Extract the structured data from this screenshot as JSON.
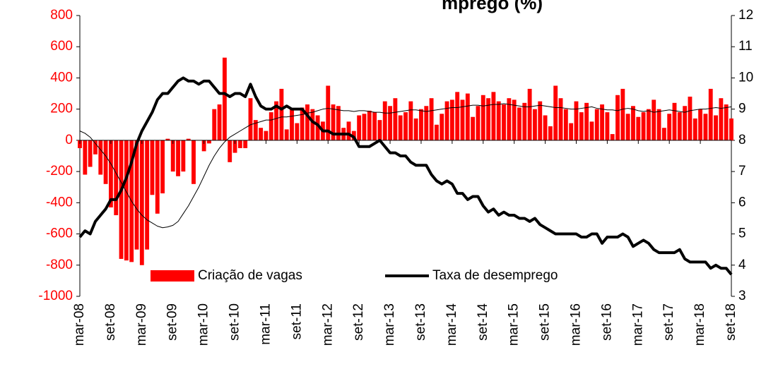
{
  "chart_data": {
    "type": "bar_line",
    "title": "mprego (%)",
    "categories": [
      "mar-08",
      null,
      null,
      null,
      null,
      null,
      "set-08",
      null,
      null,
      null,
      null,
      null,
      "mar-09",
      null,
      null,
      null,
      null,
      null,
      "set-09",
      null,
      null,
      null,
      null,
      null,
      "mar-10",
      null,
      null,
      null,
      null,
      null,
      "set-10",
      null,
      null,
      null,
      null,
      null,
      "mar-11",
      null,
      null,
      null,
      null,
      null,
      "set-11",
      null,
      null,
      null,
      null,
      null,
      "mar-12",
      null,
      null,
      null,
      null,
      null,
      "set-12",
      null,
      null,
      null,
      null,
      null,
      "mar-13",
      null,
      null,
      null,
      null,
      null,
      "set-13",
      null,
      null,
      null,
      null,
      null,
      "mar-14",
      null,
      null,
      null,
      null,
      null,
      "set-14",
      null,
      null,
      null,
      null,
      null,
      "mar-15",
      null,
      null,
      null,
      null,
      null,
      "set-15",
      null,
      null,
      null,
      null,
      null,
      "mar-16",
      null,
      null,
      null,
      null,
      null,
      "set-16",
      null,
      null,
      null,
      null,
      null,
      "mar-17",
      null,
      null,
      null,
      null,
      null,
      "set-17",
      null,
      null,
      null,
      null,
      null,
      "mar-18",
      null,
      null,
      null,
      null,
      null,
      "set-18"
    ],
    "series": [
      {
        "name": "Criação de vagas",
        "kind": "bar",
        "color": "#ff0000",
        "axis": "y",
        "values": [
          -50,
          -220,
          -170,
          -90,
          -220,
          -280,
          -430,
          -480,
          -760,
          -770,
          -780,
          -700,
          -800,
          -700,
          -350,
          -470,
          -340,
          10,
          -200,
          -230,
          -200,
          10,
          -280,
          0,
          -70,
          -20,
          200,
          230,
          530,
          -140,
          -80,
          -50,
          -50,
          270,
          130,
          80,
          60,
          180,
          250,
          330,
          70,
          200,
          110,
          210,
          230,
          200,
          160,
          120,
          350,
          230,
          220,
          80,
          120,
          60,
          160,
          170,
          190,
          180,
          130,
          250,
          220,
          270,
          160,
          180,
          250,
          140,
          200,
          220,
          270,
          100,
          170,
          250,
          260,
          310,
          260,
          300,
          150,
          220,
          290,
          270,
          310,
          250,
          230,
          270,
          260,
          210,
          240,
          330,
          200,
          250,
          160,
          90,
          350,
          270,
          200,
          110,
          250,
          180,
          240,
          120,
          200,
          230,
          180,
          40,
          290,
          330,
          170,
          220,
          150,
          180,
          200,
          260,
          200,
          80,
          170,
          240,
          180,
          220,
          280,
          140,
          200,
          170,
          330,
          160,
          270,
          230,
          140
        ]
      },
      {
        "kind": "line",
        "color": "#000000",
        "width": 1,
        "axis": "y",
        "values": [
          60,
          45,
          20,
          -20,
          -60,
          -100,
          -150,
          -210,
          -270,
          -330,
          -390,
          -440,
          -480,
          -510,
          -530,
          -550,
          -560,
          -555,
          -545,
          -520,
          -470,
          -420,
          -360,
          -300,
          -230,
          -160,
          -100,
          -50,
          -10,
          20,
          40,
          60,
          80,
          100,
          110,
          120,
          130,
          130,
          140,
          150,
          150,
          155,
          160,
          165,
          175,
          180,
          190,
          200,
          205,
          200,
          195,
          190,
          190,
          185,
          190,
          190,
          185,
          180,
          180,
          175,
          175,
          180,
          185,
          190,
          195,
          195,
          190,
          185,
          190,
          195,
          200,
          205,
          210,
          210,
          215,
          220,
          225,
          225,
          220,
          225,
          230,
          230,
          235,
          230,
          225,
          220,
          215,
          215,
          220,
          225,
          220,
          215,
          210,
          210,
          205,
          200,
          200,
          205,
          210,
          215,
          205,
          200,
          195,
          195,
          190,
          200,
          205,
          200,
          190,
          185,
          190,
          180,
          185,
          190,
          195,
          190,
          185,
          180,
          190,
          195,
          200,
          200,
          205,
          210,
          205,
          210,
          215
        ]
      },
      {
        "name": "Taxa de desemprego",
        "kind": "line",
        "color": "#000000",
        "width": 4,
        "axis": "y2",
        "values": [
          4.9,
          5.1,
          5.0,
          5.4,
          5.6,
          5.8,
          6.1,
          6.1,
          6.4,
          6.8,
          7.3,
          7.9,
          8.3,
          8.6,
          8.9,
          9.3,
          9.5,
          9.5,
          9.7,
          9.9,
          10.0,
          9.9,
          9.9,
          9.8,
          9.9,
          9.9,
          9.7,
          9.5,
          9.5,
          9.4,
          9.5,
          9.5,
          9.4,
          9.8,
          9.4,
          9.1,
          9.0,
          9.0,
          9.1,
          9.0,
          9.1,
          9.0,
          9.0,
          9.0,
          8.8,
          8.6,
          8.5,
          8.3,
          8.3,
          8.2,
          8.2,
          8.2,
          8.2,
          8.1,
          7.8,
          7.8,
          7.8,
          7.9,
          8.0,
          7.8,
          7.6,
          7.6,
          7.5,
          7.5,
          7.3,
          7.2,
          7.2,
          7.2,
          6.9,
          6.7,
          6.6,
          6.7,
          6.6,
          6.3,
          6.3,
          6.1,
          6.2,
          6.2,
          5.9,
          5.7,
          5.8,
          5.6,
          5.7,
          5.6,
          5.6,
          5.5,
          5.5,
          5.4,
          5.5,
          5.3,
          5.2,
          5.1,
          5.0,
          5.0,
          5.0,
          5.0,
          5.0,
          4.9,
          4.9,
          5.0,
          5.0,
          4.7,
          4.9,
          4.9,
          4.9,
          5.0,
          4.9,
          4.6,
          4.7,
          4.8,
          4.7,
          4.5,
          4.4,
          4.4,
          4.4,
          4.4,
          4.5,
          4.2,
          4.1,
          4.1,
          4.1,
          4.1,
          3.9,
          4.0,
          3.9,
          3.9,
          3.7
        ]
      }
    ],
    "ylim": [
      -1000,
      800
    ],
    "yticks": [
      -1000,
      -800,
      -600,
      -400,
      -200,
      0,
      200,
      400,
      600,
      800
    ],
    "ycolor": "#ff0000",
    "y2lim": [
      3,
      12
    ],
    "y2ticks": [
      3,
      4,
      5,
      6,
      7,
      8,
      9,
      10,
      11,
      12
    ],
    "grid": false,
    "legend": "bottom"
  }
}
